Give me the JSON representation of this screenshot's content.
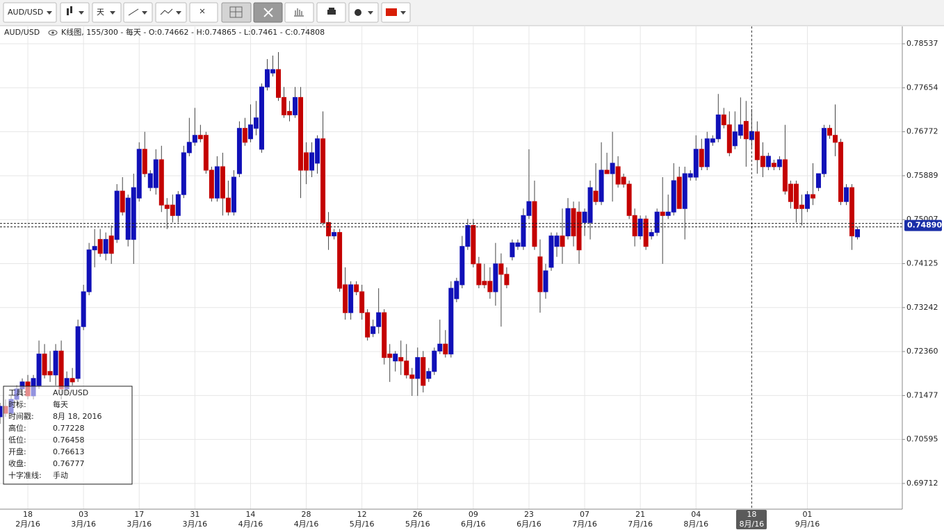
{
  "toolbar": {
    "symbol": "AUD/USD",
    "period": "天"
  },
  "header": {
    "symbol": "AUD/USD",
    "prefix": "K线图, 155/300 - 每天 - ",
    "labels": [
      "O:",
      " - H:",
      " - L:",
      " - C:"
    ]
  },
  "info_box": {
    "labels": [
      "工具:",
      "时标:",
      "时间戳:",
      "高位:",
      "低位:",
      "开盘:",
      "收盘:",
      "十字准线:"
    ],
    "instrument": "AUD/USD",
    "timeframe": "每天",
    "timestamp": "8月 18, 2016",
    "crosshair": "手动"
  },
  "chart_data": {
    "type": "candlestick",
    "categories": [
      null,
      null,
      null,
      null,
      null,
      "18\n2月/16",
      null,
      null,
      null,
      null,
      null,
      null,
      null,
      null,
      null,
      "03\n3月/16",
      null,
      null,
      null,
      null,
      null,
      null,
      null,
      null,
      null,
      "17\n3月/16",
      null,
      null,
      null,
      null,
      null,
      null,
      null,
      null,
      null,
      "31\n3月/16",
      null,
      null,
      null,
      null,
      null,
      null,
      null,
      null,
      null,
      "14\n4月/16",
      null,
      null,
      null,
      null,
      null,
      null,
      null,
      null,
      null,
      "28\n4月/16",
      null,
      null,
      null,
      null,
      null,
      null,
      null,
      null,
      null,
      "12\n5月/16",
      null,
      null,
      null,
      null,
      null,
      null,
      null,
      null,
      null,
      "26\n5月/16",
      null,
      null,
      null,
      null,
      null,
      null,
      null,
      null,
      null,
      "09\n6月/16",
      null,
      null,
      null,
      null,
      null,
      null,
      null,
      null,
      null,
      "23\n6月/16",
      null,
      null,
      null,
      null,
      null,
      null,
      null,
      null,
      null,
      "07\n7月/16",
      null,
      null,
      null,
      null,
      null,
      null,
      null,
      null,
      null,
      "21\n7月/16",
      null,
      null,
      null,
      null,
      null,
      null,
      null,
      null,
      null,
      "04\n8月/16",
      null,
      null,
      null,
      null,
      null,
      null,
      null,
      null,
      null,
      "18\n8月/16",
      null,
      null,
      null,
      null,
      null,
      null,
      null,
      null,
      null,
      "01\n9月/16",
      null,
      null,
      null,
      null,
      null,
      null,
      null,
      null,
      null
    ],
    "open": [
      0.7105,
      0.7126,
      0.7112,
      0.714,
      0.7161,
      0.7175,
      0.7147,
      0.7168,
      0.7231,
      0.7196,
      0.7189,
      0.7237,
      0.7161,
      0.7182,
      0.7182,
      0.7286,
      0.7356,
      0.744,
      0.7461,
      0.7433,
      0.7468,
      0.7461,
      0.7558,
      0.7461,
      0.7461,
      0.7544,
      0.7642,
      0.7565,
      0.7565,
      0.7621,
      0.753,
      0.753,
      0.7509,
      0.7551,
      0.7635,
      0.7656,
      0.767,
      0.767,
      0.76,
      0.7544,
      0.7607,
      0.7544,
      0.7516,
      0.7593,
      0.7684,
      0.7663,
      0.7684,
      0.7642,
      0.7767,
      0.7795,
      0.7802,
      0.7746,
      0.7718,
      0.7711,
      0.7746,
      0.7635,
      0.76,
      0.7614,
      0.7663,
      0.7495,
      0.7468,
      0.7475,
      0.737,
      0.7314,
      0.737,
      0.7356,
      0.7314,
      0.7272,
      0.7286,
      0.7314,
      0.7231,
      0.7217,
      0.7224,
      0.7217,
      0.7189,
      0.7182,
      0.7224,
      0.7182,
      0.7196,
      0.7237,
      0.7251,
      0.7231,
      0.7342,
      0.737,
      0.7447,
      0.7489,
      0.7412,
      0.7377,
      0.7377,
      0.7356,
      0.7412,
      0.7391,
      0.7426,
      0.7447,
      0.7447,
      0.7509,
      0.7537,
      0.7426,
      0.7356,
      0.7405,
      0.7447,
      0.7468,
      0.7468,
      0.7523,
      0.7516,
      0.7495,
      0.7495,
      0.7558,
      0.7537,
      0.76,
      0.7593,
      0.7607,
      0.7586,
      0.7572,
      0.7509,
      0.7468,
      0.7502,
      0.7468,
      0.7475,
      0.7516,
      0.7509,
      0.7516,
      0.7586,
      0.7523,
      0.7586,
      0.7586,
      0.7642,
      0.7607,
      0.7656,
      0.7663,
      0.7711,
      0.7691,
      0.7649,
      0.767,
      0.7698,
      0.76613,
      0.7677,
      0.7628,
      0.7607,
      0.7614,
      0.7607,
      0.7621,
      0.7572,
      0.7572,
      0.753,
      0.7523,
      0.7551,
      0.7565,
      0.7593,
      0.7684,
      0.767,
      0.7656,
      0.7537,
      0.7565,
      0.74662
    ],
    "high": [
      0.7133,
      0.714,
      0.7147,
      0.7168,
      0.7182,
      0.7189,
      0.7189,
      0.7258,
      0.7251,
      0.7237,
      0.7251,
      0.7258,
      0.7196,
      0.7203,
      0.73,
      0.737,
      0.7454,
      0.7482,
      0.7482,
      0.7475,
      0.7489,
      0.7572,
      0.7586,
      0.7551,
      0.7593,
      0.7656,
      0.7677,
      0.76,
      0.7642,
      0.7649,
      0.7544,
      0.7551,
      0.7558,
      0.7649,
      0.7705,
      0.7725,
      0.7691,
      0.7677,
      0.7607,
      0.7628,
      0.7635,
      0.7579,
      0.76,
      0.7698,
      0.7705,
      0.7732,
      0.7739,
      0.7774,
      0.7823,
      0.783,
      0.7837,
      0.7767,
      0.7739,
      0.7767,
      0.7767,
      0.7656,
      0.7656,
      0.767,
      0.7718,
      0.7516,
      0.7482,
      0.7482,
      0.7405,
      0.7377,
      0.7377,
      0.737,
      0.7321,
      0.73,
      0.7363,
      0.7321,
      0.7251,
      0.7237,
      0.7258,
      0.7251,
      0.7203,
      0.7244,
      0.7237,
      0.7203,
      0.7244,
      0.73,
      0.7279,
      0.7377,
      0.7384,
      0.7468,
      0.7502,
      0.7502,
      0.7426,
      0.7412,
      0.7405,
      0.7454,
      0.7433,
      0.7405,
      0.7461,
      0.7461,
      0.7523,
      0.7642,
      0.7579,
      0.7461,
      0.7412,
      0.7475,
      0.7475,
      0.7523,
      0.7544,
      0.7537,
      0.7537,
      0.7523,
      0.7579,
      0.7614,
      0.7656,
      0.7635,
      0.7677,
      0.7628,
      0.7593,
      0.7579,
      0.7523,
      0.7509,
      0.7509,
      0.7482,
      0.7523,
      0.7586,
      0.7551,
      0.7614,
      0.7607,
      0.7607,
      0.76,
      0.767,
      0.7663,
      0.7677,
      0.767,
      0.7753,
      0.7725,
      0.7718,
      0.7718,
      0.7746,
      0.7739,
      0.77228,
      0.7698,
      0.7656,
      0.7635,
      0.7621,
      0.7628,
      0.7691,
      0.7579,
      0.7579,
      0.7551,
      0.7558,
      0.7614,
      0.7593,
      0.7691,
      0.7691,
      0.7732,
      0.7663,
      0.7572,
      0.7572,
      0.74865
    ],
    "low": [
      0.7091,
      0.7105,
      0.7105,
      0.7126,
      0.7147,
      0.714,
      0.714,
      0.7161,
      0.7182,
      0.7175,
      0.7168,
      0.714,
      0.7147,
      0.7168,
      0.7175,
      0.7279,
      0.7349,
      0.7405,
      0.7426,
      0.7419,
      0.7412,
      0.7454,
      0.7509,
      0.7447,
      0.7412,
      0.7537,
      0.7586,
      0.7558,
      0.7551,
      0.7516,
      0.7482,
      0.7495,
      0.7495,
      0.7544,
      0.7628,
      0.7649,
      0.7656,
      0.7593,
      0.7537,
      0.7537,
      0.7509,
      0.7509,
      0.7509,
      0.7586,
      0.7649,
      0.7656,
      0.767,
      0.7635,
      0.776,
      0.7788,
      0.7739,
      0.7705,
      0.7698,
      0.7705,
      0.7544,
      0.7572,
      0.7586,
      0.7593,
      0.7489,
      0.744,
      0.7461,
      0.7356,
      0.73,
      0.73,
      0.7349,
      0.73,
      0.7258,
      0.7265,
      0.7272,
      0.721,
      0.7175,
      0.7196,
      0.7189,
      0.7182,
      0.7147,
      0.7147,
      0.7154,
      0.7175,
      0.7189,
      0.7231,
      0.7224,
      0.7224,
      0.7335,
      0.7363,
      0.744,
      0.7405,
      0.7363,
      0.7363,
      0.7342,
      0.7328,
      0.7286,
      0.7363,
      0.7419,
      0.744,
      0.744,
      0.7502,
      0.744,
      0.7314,
      0.7342,
      0.7398,
      0.7426,
      0.7412,
      0.7461,
      0.7447,
      0.7412,
      0.7468,
      0.7461,
      0.753,
      0.753,
      0.7593,
      0.7537,
      0.7565,
      0.7565,
      0.7502,
      0.7447,
      0.7461,
      0.744,
      0.7461,
      0.7468,
      0.7412,
      0.7502,
      0.7509,
      0.7523,
      0.7461,
      0.7579,
      0.7579,
      0.76,
      0.76,
      0.7649,
      0.7656,
      0.7684,
      0.7628,
      0.7642,
      0.7663,
      0.7607,
      0.76458,
      0.7593,
      0.7586,
      0.76,
      0.76,
      0.76,
      0.7551,
      0.7523,
      0.7495,
      0.7489,
      0.7516,
      0.753,
      0.7558,
      0.7586,
      0.7663,
      0.7628,
      0.753,
      0.753,
      0.744,
      0.7461
    ],
    "close": [
      0.7126,
      0.7112,
      0.714,
      0.7161,
      0.7175,
      0.7147,
      0.7182,
      0.7231,
      0.7189,
      0.7189,
      0.7237,
      0.7161,
      0.7182,
      0.7175,
      0.7286,
      0.7356,
      0.744,
      0.7447,
      0.7433,
      0.7461,
      0.7433,
      0.7558,
      0.7516,
      0.7544,
      0.7565,
      0.7642,
      0.7593,
      0.7593,
      0.7621,
      0.753,
      0.7523,
      0.7509,
      0.7551,
      0.7635,
      0.7656,
      0.767,
      0.7663,
      0.76,
      0.7544,
      0.7607,
      0.7544,
      0.7516,
      0.7586,
      0.7684,
      0.7656,
      0.7691,
      0.7705,
      0.7767,
      0.7802,
      0.7802,
      0.7746,
      0.7711,
      0.7711,
      0.7746,
      0.76,
      0.76,
      0.7635,
      0.7663,
      0.7495,
      0.7468,
      0.7475,
      0.7363,
      0.7314,
      0.737,
      0.7356,
      0.7314,
      0.7265,
      0.7286,
      0.7314,
      0.7224,
      0.7224,
      0.7231,
      0.7217,
      0.7189,
      0.7182,
      0.7224,
      0.7168,
      0.7196,
      0.7237,
      0.7251,
      0.7231,
      0.7363,
      0.7377,
      0.7447,
      0.7489,
      0.7412,
      0.737,
      0.737,
      0.7356,
      0.7412,
      0.7391,
      0.737,
      0.7454,
      0.7454,
      0.7509,
      0.7537,
      0.7447,
      0.7356,
      0.7398,
      0.7468,
      0.7468,
      0.7447,
      0.7523,
      0.7468,
      0.744,
      0.7516,
      0.7565,
      0.7537,
      0.76,
      0.7593,
      0.7614,
      0.7572,
      0.7572,
      0.7509,
      0.7468,
      0.7502,
      0.7447,
      0.7475,
      0.7516,
      0.7509,
      0.7516,
      0.7579,
      0.7523,
      0.7593,
      0.7593,
      0.7642,
      0.7607,
      0.7663,
      0.7663,
      0.7711,
      0.7691,
      0.7635,
      0.7677,
      0.7691,
      0.7663,
      0.76777,
      0.7621,
      0.7607,
      0.7628,
      0.7607,
      0.7621,
      0.7558,
      0.7537,
      0.7523,
      0.7523,
      0.7551,
      0.7544,
      0.7593,
      0.7684,
      0.767,
      0.7656,
      0.7537,
      0.7565,
      0.7468,
      0.74808
    ],
    "up_color": "#1010b8",
    "down_color": "#c40000",
    "ylim": [
      0.69196,
      0.78886
    ],
    "yticks": [
      0.78537,
      0.77654,
      0.76772,
      0.75889,
      0.75007,
      0.74125,
      0.73242,
      {
        "value": 0.7236,
        "label": "0.72360"
      },
      0.71477,
      0.70595,
      0.69712
    ],
    "current_price": {
      "value": 0.7489,
      "label": "0.74890"
    },
    "grid": true
  }
}
